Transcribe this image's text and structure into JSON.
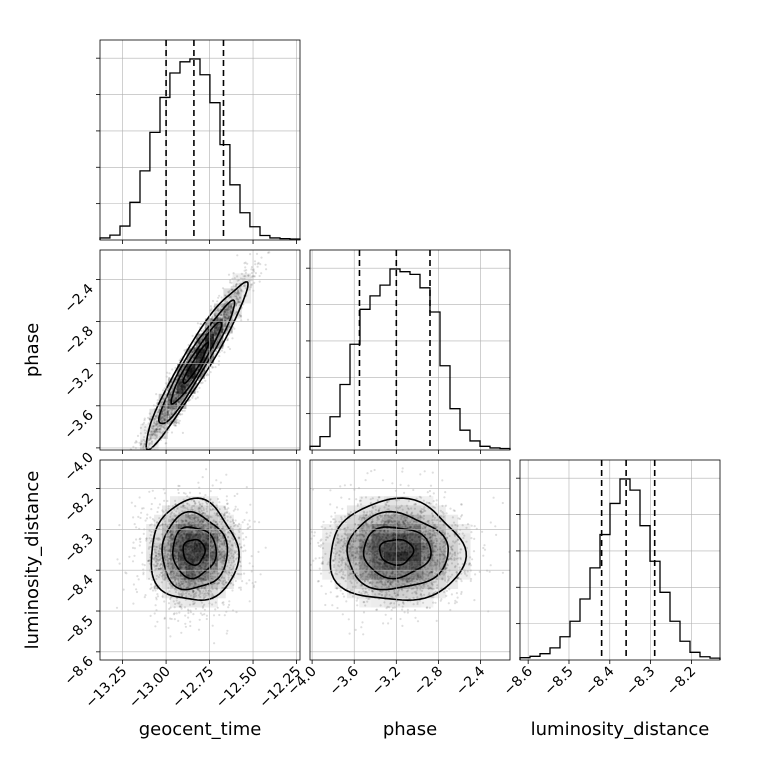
{
  "chart_data": {
    "type": "corner",
    "parameters": [
      "geocent_time",
      "phase",
      "luminosity_distance"
    ],
    "axes": {
      "geocent_time": {
        "label": "geocent_time",
        "range": [
          -13.38,
          -12.23
        ],
        "ticks": [
          -13.25,
          -13.0,
          -12.75,
          -12.5,
          -12.25
        ],
        "tick_labels": [
          "−13.25",
          "−13.00",
          "−12.75",
          "−12.50",
          "−12.25"
        ],
        "quantiles": [
          -13.0,
          -12.84,
          -12.67
        ]
      },
      "phase": {
        "label": "phase",
        "range": [
          -4.02,
          -2.12
        ],
        "ticks": [
          -4.0,
          -3.6,
          -3.2,
          -2.8,
          -2.4
        ],
        "tick_labels": [
          "−4.0",
          "−3.6",
          "−3.2",
          "−2.8",
          "−2.4"
        ],
        "quantiles": [
          -3.55,
          -3.2,
          -2.88
        ]
      },
      "luminosity_distance": {
        "label": "luminosity_distance",
        "range": [
          -8.62,
          -8.13
        ],
        "ticks": [
          -8.6,
          -8.5,
          -8.4,
          -8.3,
          -8.2
        ],
        "tick_labels": [
          "−8.6",
          "−8.5",
          "−8.4",
          "−8.3",
          "−8.2"
        ],
        "quantiles": [
          -8.42,
          -8.36,
          -8.29
        ]
      }
    },
    "histograms": {
      "geocent_time": {
        "bin_edges": [
          -13.38,
          -13.323,
          -13.265,
          -13.208,
          -13.15,
          -13.093,
          -13.035,
          -12.978,
          -12.92,
          -12.863,
          -12.805,
          -12.748,
          -12.69,
          -12.633,
          -12.575,
          -12.518,
          -12.46,
          -12.403,
          -12.345,
          -12.288,
          -12.23
        ],
        "counts": [
          0.3,
          1.1,
          3.7,
          10.5,
          19.5,
          30.5,
          40.5,
          47.5,
          50.7,
          51.5,
          47.0,
          39.0,
          27.0,
          15.5,
          7.5,
          3.5,
          1.0,
          0.3,
          0.1,
          0
        ]
      },
      "phase": {
        "bin_edges": [
          -4.02,
          -3.925,
          -3.83,
          -3.735,
          -3.64,
          -3.545,
          -3.45,
          -3.355,
          -3.26,
          -3.165,
          -3.07,
          -2.975,
          -2.88,
          -2.785,
          -2.69,
          -2.595,
          -2.5,
          -2.405,
          -2.31,
          -2.215,
          -2.12
        ],
        "counts": [
          0.5,
          2.3,
          6.0,
          12.0,
          19.5,
          26.0,
          28.5,
          30.5,
          33.5,
          33.0,
          32.5,
          30.0,
          25.5,
          15.5,
          7.5,
          3.5,
          1.5,
          0.5,
          0.2,
          0.1
        ]
      },
      "luminosity_distance": {
        "bin_edges": [
          -8.62,
          -8.5955,
          -8.571,
          -8.5465,
          -8.522,
          -8.4975,
          -8.473,
          -8.4485,
          -8.424,
          -8.3995,
          -8.375,
          -8.3505,
          -8.326,
          -8.3015,
          -8.277,
          -8.2525,
          -8.228,
          -8.2035,
          -8.179,
          -8.1545,
          -8.13
        ],
        "counts": [
          0.3,
          0.6,
          1.2,
          2.5,
          5.0,
          8.5,
          13.5,
          20.5,
          28.0,
          35.0,
          40.5,
          38.0,
          30.0,
          22.0,
          15.0,
          8.5,
          4.0,
          1.5,
          0.5,
          0.2
        ]
      }
    },
    "pairs": [
      {
        "x": "geocent_time",
        "y": "phase",
        "center": [
          -12.83,
          -3.2
        ],
        "sigma": [
          0.145,
          0.39
        ],
        "rho": 0.95,
        "samples": 2600
      },
      {
        "x": "geocent_time",
        "y": "luminosity_distance",
        "center": [
          -12.84,
          -8.355
        ],
        "sigma": [
          0.125,
          0.062
        ],
        "rho": 0.0,
        "samples": 2600
      },
      {
        "x": "phase",
        "y": "luminosity_distance",
        "center": [
          -3.2,
          -8.355
        ],
        "sigma": [
          0.32,
          0.062
        ],
        "rho": 0.0,
        "samples": 2600
      }
    ],
    "contour_levels": [
      "0.5σ",
      "1σ",
      "1.5σ",
      "2σ"
    ],
    "grid": true,
    "colors": {
      "line": "#000000",
      "grid": "#b0b0b0",
      "points": "#000000",
      "density": "#000000"
    }
  }
}
